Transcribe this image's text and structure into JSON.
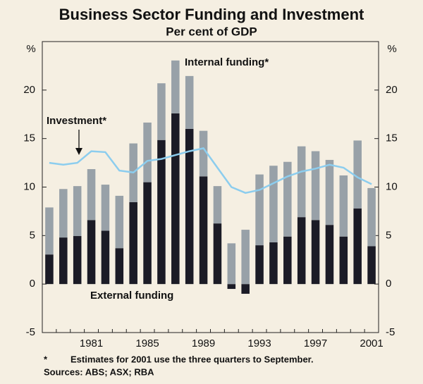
{
  "chart_data": {
    "type": "bar",
    "title": "Business Sector Funding and Investment",
    "subtitle": "Per cent of GDP",
    "y_unit": "%",
    "y2_unit": "%",
    "categories": [
      null,
      null,
      null,
      "1981",
      null,
      null,
      null,
      "1985",
      null,
      null,
      null,
      "1989",
      null,
      null,
      null,
      "1993",
      null,
      null,
      null,
      "1997",
      null,
      null,
      null,
      "2001"
    ],
    "series": [
      {
        "name": "External funding",
        "color": "#1b1b26",
        "stack": true,
        "values": [
          3.05,
          4.8,
          4.95,
          6.6,
          5.5,
          3.7,
          8.45,
          10.5,
          14.85,
          17.6,
          16.0,
          11.1,
          6.25,
          -0.5,
          -1.0,
          4.0,
          4.3,
          4.9,
          6.9,
          6.6,
          6.1,
          4.9,
          7.8,
          3.9
        ]
      },
      {
        "name": "Internal funding*",
        "color": "#98a1a8",
        "stack": true,
        "values": [
          4.85,
          5.0,
          5.15,
          5.25,
          4.75,
          5.4,
          6.05,
          6.15,
          5.85,
          5.45,
          5.45,
          4.7,
          3.85,
          4.2,
          5.6,
          7.3,
          7.9,
          7.7,
          7.3,
          7.1,
          6.7,
          6.3,
          7.0,
          6.0
        ]
      },
      {
        "name": "Investment*",
        "color": "#8ccdee",
        "type": "line",
        "values": [
          12.5,
          12.3,
          12.5,
          13.7,
          13.6,
          11.7,
          11.5,
          12.7,
          12.9,
          13.3,
          13.7,
          14.0,
          12.0,
          10.0,
          9.4,
          9.7,
          10.4,
          11.1,
          11.6,
          11.9,
          12.3,
          12.0,
          11.0,
          10.3
        ]
      }
    ],
    "ylim": [
      -5,
      25
    ],
    "yticks": [
      -5,
      0,
      5,
      10,
      15,
      20
    ],
    "y2lim": [
      -5,
      25
    ],
    "y2ticks": [
      -5,
      0,
      5,
      10,
      15,
      20
    ],
    "footnote_marker": "*",
    "footnote": "Estimates for 2001 use the three quarters to September.",
    "sources": "Sources: ABS; ASX; RBA"
  }
}
